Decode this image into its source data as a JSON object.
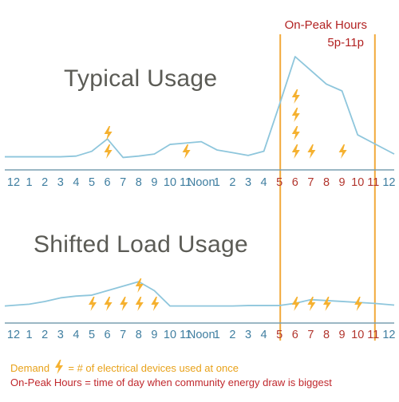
{
  "colors": {
    "line": "#8ec6dc",
    "axis": "#7a9fb0",
    "tick_label": "#3f7ea0",
    "peak_tick_label": "#b2352d",
    "peak_boundary": "#f2a93b",
    "bolt": "#f5b130",
    "title": "#5b5b55",
    "peak_text": "#b22222",
    "demand_text": "#e8a21a"
  },
  "peak_header": {
    "title": "On-Peak Hours",
    "range": "5p-11p"
  },
  "legend": {
    "demand_prefix": "Demand",
    "demand_suffix": "= # of electrical devices used at once",
    "peak": "On-Peak Hours = time of day when community energy draw is biggest"
  },
  "chart_data": [
    {
      "type": "line",
      "title": "Typical Usage",
      "x": [
        "12",
        "1",
        "2",
        "3",
        "4",
        "5",
        "6",
        "7",
        "8",
        "9",
        "10",
        "11",
        "Noon",
        "1",
        "2",
        "3",
        "4",
        "5",
        "6",
        "7",
        "8",
        "9",
        "10",
        "11",
        "12"
      ],
      "peak_hours": [
        17,
        18,
        19,
        20,
        21,
        22,
        23
      ],
      "peak_boundaries": [
        17,
        23
      ],
      "usage": [
        2,
        2,
        2,
        2,
        2.5,
        6,
        15,
        1.5,
        2.5,
        4,
        11,
        12,
        13,
        7,
        5,
        3,
        6,
        40,
        75,
        65,
        55,
        50,
        18,
        12,
        4
      ],
      "demand_devices": [
        0,
        0,
        0,
        0,
        0,
        0,
        2,
        0,
        0,
        0,
        0,
        1,
        0,
        0,
        0,
        0,
        0,
        0,
        4,
        1,
        0,
        1,
        0,
        0,
        0
      ],
      "ylim": [
        0,
        100
      ]
    },
    {
      "type": "line",
      "title": "Shifted Load Usage",
      "x": [
        "12",
        "1",
        "2",
        "3",
        "4",
        "5",
        "6",
        "7",
        "8",
        "9",
        "10",
        "11",
        "Noon",
        "1",
        "2",
        "3",
        "4",
        "5",
        "6",
        "7",
        "8",
        "9",
        "10",
        "11",
        "12"
      ],
      "peak_hours": [
        17,
        18,
        19,
        20,
        21,
        22,
        23
      ],
      "peak_boundaries": [
        17,
        23
      ],
      "usage": [
        3,
        5,
        8,
        12,
        14,
        15,
        20,
        25,
        30,
        20,
        3,
        3,
        3,
        3,
        3,
        3.5,
        3.5,
        3.5,
        6,
        10,
        9,
        8,
        7,
        6,
        4
      ],
      "demand_devices": [
        0,
        0,
        0,
        0,
        0,
        1,
        1,
        1,
        2,
        1,
        0,
        0,
        0,
        0,
        0,
        0,
        0,
        0,
        1,
        1,
        1,
        0,
        1,
        0,
        0
      ],
      "ylim": [
        0,
        100
      ]
    }
  ]
}
